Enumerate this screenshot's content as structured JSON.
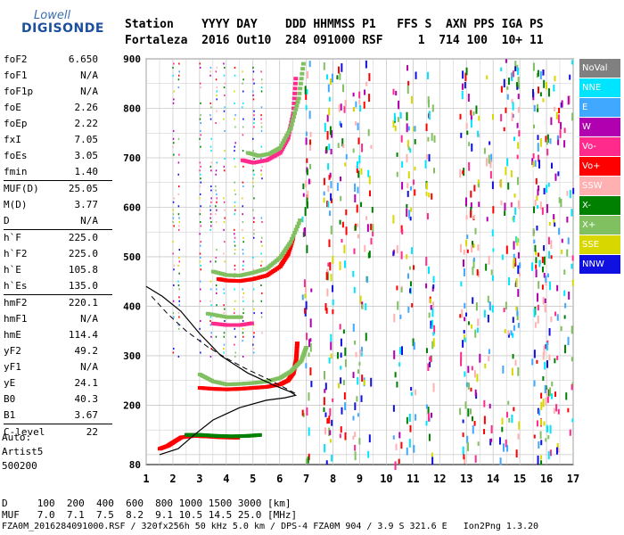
{
  "logo": {
    "line1": "Lowell",
    "line2": "DIGISONDE"
  },
  "header": {
    "row1": "Station    YYYY DAY    DDD HHMMSS P1   FFS S  AXN PPS IGA PS",
    "row2": "Fortaleza  2016 Out10  284 091000 RSF     1  714 100  10+ 11"
  },
  "params": [
    [
      [
        "foF2",
        "6.650"
      ],
      [
        "foF1",
        "N/A"
      ],
      [
        "foF1p",
        "N/A"
      ],
      [
        "foE",
        "2.26"
      ],
      [
        "foEp",
        "2.22"
      ],
      [
        "fxI",
        "7.05"
      ],
      [
        "foEs",
        "3.05"
      ],
      [
        "fmin",
        "1.40"
      ]
    ],
    [
      [
        "MUF(D)",
        "25.05"
      ],
      [
        "M(D)",
        "3.77"
      ],
      [
        "D",
        "N/A"
      ]
    ],
    [
      [
        "h`F",
        "225.0"
      ],
      [
        "h`F2",
        "225.0"
      ],
      [
        "h`E",
        "105.8"
      ],
      [
        "h`Es",
        "135.0"
      ]
    ],
    [
      [
        "hmF2",
        "220.1"
      ],
      [
        "hmF1",
        "N/A"
      ],
      [
        "hmE",
        "114.4"
      ],
      [
        "yF2",
        "49.2"
      ],
      [
        "yF1",
        "N/A"
      ],
      [
        "yE",
        "24.1"
      ],
      [
        "B0",
        "40.3"
      ],
      [
        "B1",
        "3.67"
      ]
    ],
    [
      [
        "C-level",
        "22"
      ]
    ]
  ],
  "auto": {
    "line1": "Auto:",
    "line2": "Artist5",
    "line3": "500200"
  },
  "footer": {
    "d_row": "D     100  200  400  600  800 1000 1500 3000 [km]",
    "muf_row": "MUF   7.0  7.1  7.5  8.2  9.1 10.5 14.5 25.0 [MHz]",
    "file_row": "FZA0M_2016284091000.RSF / 320fx256h 50 kHz 5.0 km / DPS-4 FZA0M 904 / 3.9 S 321.6 E   Ion2Png 1.3.20"
  },
  "legend": [
    {
      "label": "NoVal",
      "color": "#808080"
    },
    {
      "label": "NNE",
      "color": "#00e5ff"
    },
    {
      "label": "E",
      "color": "#40a8ff"
    },
    {
      "label": "W",
      "color": "#b000b0"
    },
    {
      "label": "Vo-",
      "color": "#ff2a8c"
    },
    {
      "label": "Vo+",
      "color": "#ff0000"
    },
    {
      "label": "SSW",
      "color": "#ffb0b0"
    },
    {
      "label": "X-",
      "color": "#008000"
    },
    {
      "label": "X+",
      "color": "#80c060"
    },
    {
      "label": "SSE",
      "color": "#d8d800"
    },
    {
      "label": "NNW",
      "color": "#1010e0"
    }
  ],
  "chart_data": {
    "type": "scatter",
    "xlim": [
      1,
      17
    ],
    "ylim": [
      80,
      900
    ],
    "x_ticks": [
      1,
      2,
      3,
      4,
      5,
      6,
      7,
      8,
      9,
      10,
      11,
      12,
      13,
      14,
      15,
      16,
      17
    ],
    "y_ticks": [
      80,
      200,
      300,
      400,
      500,
      600,
      700,
      800,
      900
    ],
    "grid": true,
    "traces": [
      {
        "name": "F2 O-trace",
        "color": "#ff0000",
        "points": [
          [
            3.0,
            235
          ],
          [
            3.5,
            233
          ],
          [
            4.0,
            232
          ],
          [
            4.5,
            233
          ],
          [
            5.0,
            235
          ],
          [
            5.5,
            237
          ],
          [
            6.0,
            242
          ],
          [
            6.3,
            250
          ],
          [
            6.5,
            265
          ],
          [
            6.6,
            290
          ],
          [
            6.65,
            330
          ]
        ]
      },
      {
        "name": "F2 X-trace",
        "color": "#80c060",
        "points": [
          [
            3.0,
            262
          ],
          [
            3.5,
            248
          ],
          [
            4.0,
            242
          ],
          [
            4.5,
            243
          ],
          [
            5.0,
            245
          ],
          [
            5.5,
            248
          ],
          [
            6.0,
            255
          ],
          [
            6.4,
            268
          ],
          [
            6.8,
            290
          ],
          [
            7.0,
            320
          ]
        ]
      },
      {
        "name": "Second hop O",
        "color": "#ff0000",
        "points": [
          [
            3.7,
            455
          ],
          [
            4.0,
            452
          ],
          [
            4.5,
            451
          ],
          [
            5.0,
            455
          ],
          [
            5.5,
            462
          ],
          [
            6.0,
            480
          ],
          [
            6.3,
            505
          ],
          [
            6.5,
            540
          ]
        ]
      },
      {
        "name": "Second hop X",
        "color": "#80c060",
        "points": [
          [
            3.5,
            470
          ],
          [
            4.0,
            463
          ],
          [
            4.5,
            462
          ],
          [
            5.0,
            468
          ],
          [
            5.5,
            476
          ],
          [
            6.0,
            498
          ],
          [
            6.4,
            530
          ],
          [
            6.8,
            580
          ]
        ]
      },
      {
        "name": "Third hop",
        "color": "#ff2a8c",
        "points": [
          [
            4.6,
            695
          ],
          [
            5.0,
            690
          ],
          [
            5.5,
            695
          ],
          [
            6.0,
            710
          ],
          [
            6.3,
            740
          ],
          [
            6.5,
            790
          ],
          [
            6.6,
            870
          ]
        ]
      },
      {
        "name": "Third hop X",
        "color": "#80c060",
        "points": [
          [
            4.8,
            710
          ],
          [
            5.2,
            704
          ],
          [
            5.6,
            708
          ],
          [
            6.0,
            720
          ],
          [
            6.4,
            760
          ],
          [
            6.7,
            820
          ],
          [
            6.9,
            900
          ]
        ]
      },
      {
        "name": "E/Es",
        "color": "#ff0000",
        "points": [
          [
            1.5,
            112
          ],
          [
            1.8,
            118
          ],
          [
            2.0,
            125
          ],
          [
            2.3,
            135
          ],
          [
            2.8,
            138
          ],
          [
            3.2,
            137
          ],
          [
            3.8,
            135
          ],
          [
            4.5,
            134
          ]
        ]
      },
      {
        "name": "E X",
        "color": "#008000",
        "points": [
          [
            2.5,
            140
          ],
          [
            3.0,
            140
          ],
          [
            3.6,
            138
          ],
          [
            4.2,
            137
          ],
          [
            4.8,
            138
          ],
          [
            5.3,
            140
          ]
        ]
      },
      {
        "name": "Layer Es2",
        "color": "#ff2a8c",
        "points": [
          [
            3.5,
            365
          ],
          [
            4.0,
            362
          ],
          [
            4.5,
            362
          ],
          [
            5.0,
            366
          ]
        ]
      },
      {
        "name": "Layer Es2 X",
        "color": "#80c060",
        "points": [
          [
            3.3,
            385
          ],
          [
            4.0,
            378
          ],
          [
            4.6,
            378
          ]
        ]
      }
    ],
    "profile": [
      [
        1.5,
        100
      ],
      [
        2.2,
        112
      ],
      [
        2.8,
        140
      ],
      [
        3.5,
        170
      ],
      [
        4.5,
        195
      ],
      [
        5.5,
        210
      ],
      [
        6.2,
        215
      ],
      [
        6.6,
        220
      ],
      [
        6.4,
        227
      ],
      [
        5.8,
        240
      ],
      [
        4.8,
        265
      ],
      [
        3.8,
        300
      ],
      [
        3.0,
        345
      ],
      [
        2.3,
        390
      ],
      [
        1.6,
        420
      ],
      [
        1.0,
        440
      ]
    ],
    "profile_dashed": [
      [
        1.2,
        420
      ],
      [
        1.8,
        385
      ],
      [
        2.5,
        350
      ],
      [
        3.3,
        318
      ],
      [
        4.0,
        295
      ],
      [
        4.8,
        272
      ],
      [
        5.6,
        252
      ],
      [
        6.3,
        232
      ],
      [
        6.65,
        222
      ]
    ]
  }
}
